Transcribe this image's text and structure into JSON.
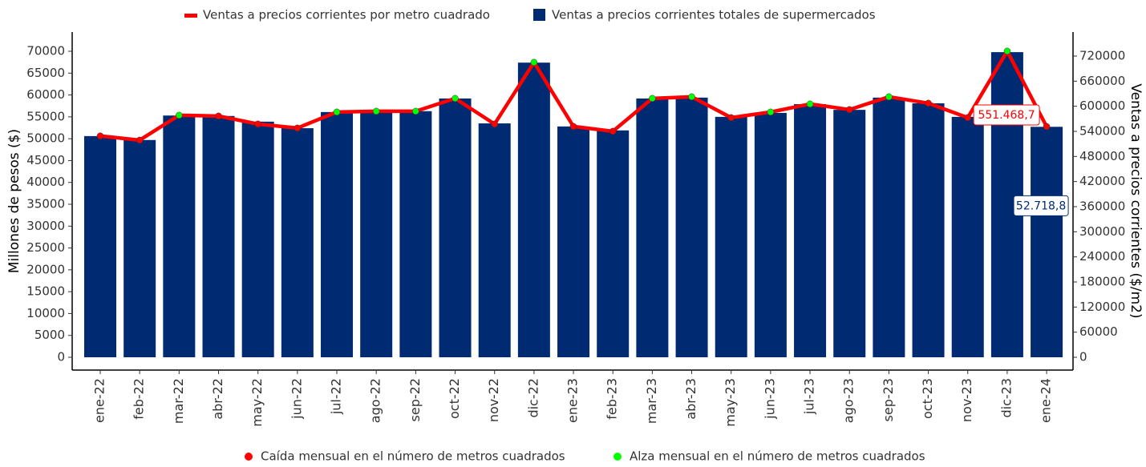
{
  "chart_data": {
    "type": "bar_line",
    "categories": [
      "ene-22",
      "feb-22",
      "mar-22",
      "abr-22",
      "may-22",
      "jun-22",
      "jul-22",
      "ago-22",
      "sep-22",
      "oct-22",
      "nov-22",
      "dic-22",
      "ene-23",
      "feb-23",
      "mar-23",
      "abr-23",
      "may-23",
      "jun-23",
      "jul-23",
      "ago-23",
      "sep-23",
      "oct-23",
      "nov-23",
      "dic-23",
      "ene-24"
    ],
    "series": [
      {
        "name": "Ventas a precios corrientes por metro cuadrado",
        "type": "line",
        "axis": "y2",
        "color": "#ff0000",
        "values": [
          529000,
          519000,
          578500,
          576600,
          557500,
          547900,
          586200,
          588100,
          588100,
          618800,
          557500,
          705000,
          551700,
          540200,
          618800,
          622600,
          572800,
          586200,
          605400,
          592000,
          622600,
          607300,
          572800,
          731800,
          551468.7
        ],
        "value_labels": [
          null,
          null,
          null,
          null,
          null,
          null,
          null,
          null,
          null,
          null,
          null,
          null,
          null,
          null,
          null,
          null,
          null,
          null,
          null,
          null,
          null,
          null,
          null,
          null,
          "551.468,7"
        ]
      },
      {
        "name": "Ventas a precios corrientes totales de supermercados",
        "type": "bar",
        "color": "#002b73",
        "values": [
          50600,
          49700,
          55300,
          55200,
          53900,
          52400,
          56100,
          55900,
          56300,
          59200,
          53500,
          67400,
          52800,
          51900,
          59200,
          59400,
          55000,
          55900,
          57900,
          56600,
          59400,
          58100,
          55000,
          69800,
          52718.8
        ],
        "value_labels": [
          null,
          null,
          null,
          null,
          null,
          null,
          null,
          null,
          null,
          null,
          null,
          null,
          null,
          null,
          null,
          null,
          null,
          null,
          null,
          null,
          null,
          null,
          null,
          null,
          "52.718,8"
        ]
      }
    ],
    "point_series": [
      {
        "name": "Caída mensual en el número de metros cuadrados",
        "color": "#ff0000"
      },
      {
        "name": "Alza mensual en el número de metros cuadrados",
        "color": "#00ff00"
      }
    ],
    "point_kind": [
      0,
      0,
      1,
      0,
      0,
      0,
      1,
      1,
      1,
      1,
      0,
      1,
      0,
      0,
      1,
      1,
      0,
      1,
      1,
      0,
      1,
      0,
      0,
      1,
      0
    ],
    "ylabel": "Millones de pesos ($)",
    "y2label": "Ventas a precios corrientes ($/m2)",
    "ylim": [
      -2930,
      74400
    ],
    "yticks": [
      0,
      5000,
      10000,
      15000,
      20000,
      25000,
      30000,
      35000,
      40000,
      45000,
      50000,
      55000,
      60000,
      65000,
      70000
    ],
    "y2lim": [
      -30600,
      777400
    ],
    "y2ticks": [
      0,
      60000,
      120000,
      180000,
      240000,
      300000,
      360000,
      420000,
      480000,
      540000,
      600000,
      660000,
      720000
    ],
    "grid": false
  }
}
